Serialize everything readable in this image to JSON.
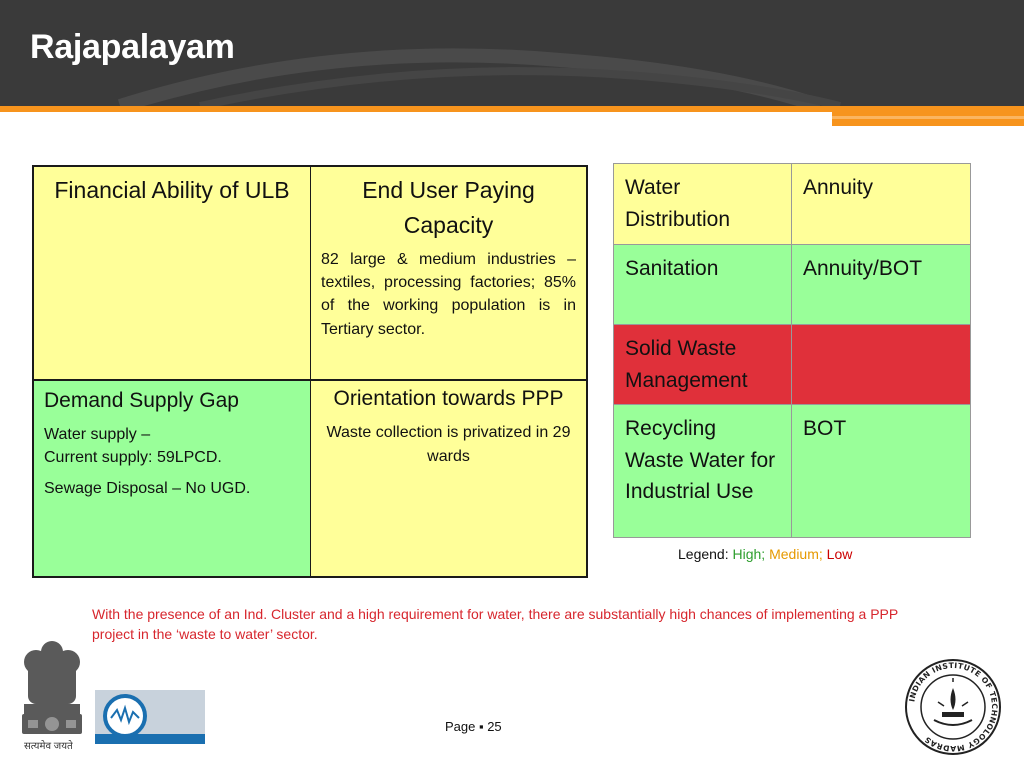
{
  "slide": {
    "title": "Rajapalayam",
    "page_label": "Page ▪ 25",
    "note": "With the presence of an Ind. Cluster and a high requirement for water, there are substantially high chances of implementing a PPP project in the ‘waste to water’ sector."
  },
  "matrix": {
    "financial": {
      "heading": "Financial Ability of ULB"
    },
    "end_user": {
      "heading": "End User Paying Capacity",
      "body": "82 large & medium industries – textiles, processing factories; 85% of the working population is in Tertiary sector."
    },
    "demand": {
      "heading": "Demand Supply Gap",
      "line1": "Water supply –",
      "line2": "Current supply: 59LPCD.",
      "line3": "Sewage Disposal – No UGD."
    },
    "orientation": {
      "heading": "Orientation towards PPP",
      "body": "Waste collection is privatized in 29 wards"
    }
  },
  "projects": [
    {
      "sector": "Water Distribution",
      "model": "Annuity",
      "rating": "Medium",
      "color": "#ffff99"
    },
    {
      "sector": "Sanitation",
      "model": "Annuity/BOT",
      "rating": "High",
      "color": "#99ff99"
    },
    {
      "sector": "Solid Waste Management",
      "model": "",
      "rating": "Low",
      "color": "#e0303a"
    },
    {
      "sector": "Recycling Waste Water for Industrial Use",
      "model": "BOT",
      "rating": "High",
      "color": "#99ff99"
    }
  ],
  "legend": {
    "label": "Legend:",
    "high": "High;",
    "medium": "Medium;",
    "low": "Low",
    "colors": {
      "high": "#2e9e2e",
      "medium": "#e69900",
      "low": "#cc0000"
    }
  },
  "logos": {
    "emblem_caption": "सत्यमेव जयते",
    "emblem_icon": "state-emblem-icon",
    "org_icon": "organisation-logo-icon",
    "iitm_icon": "iit-madras-seal-icon",
    "iitm_ring_text": "INDIAN INSTITUTE OF TECHNOLOGY MADRAS"
  },
  "theme": {
    "header": "#3a3a3a",
    "accent": "#f7941d",
    "note": "#d7262d"
  }
}
